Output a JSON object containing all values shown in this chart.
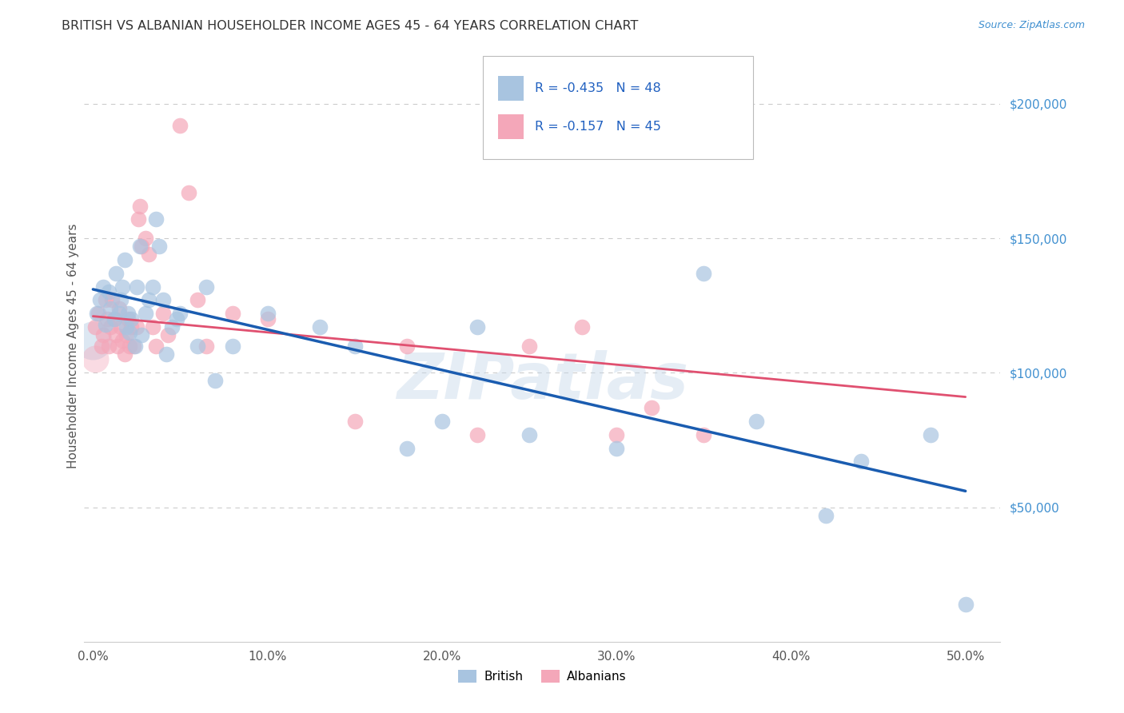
{
  "title": "BRITISH VS ALBANIAN HOUSEHOLDER INCOME AGES 45 - 64 YEARS CORRELATION CHART",
  "source": "Source: ZipAtlas.com",
  "ylabel": "Householder Income Ages 45 - 64 years",
  "xlabel_ticks": [
    "0.0%",
    "10.0%",
    "20.0%",
    "30.0%",
    "40.0%",
    "50.0%"
  ],
  "xlabel_vals": [
    0.0,
    0.1,
    0.2,
    0.3,
    0.4,
    0.5
  ],
  "ylabel_ticks": [
    "$50,000",
    "$100,000",
    "$150,000",
    "$200,000"
  ],
  "ylabel_vals": [
    50000,
    100000,
    150000,
    200000
  ],
  "ylim": [
    0,
    220000
  ],
  "xlim": [
    -0.005,
    0.52
  ],
  "british_R": -0.435,
  "british_N": 48,
  "albanian_R": -0.157,
  "albanian_N": 45,
  "british_color": "#a8c4e0",
  "albanian_color": "#f4a7b9",
  "british_line_color": "#1a5cb0",
  "albanian_line_color": "#e05070",
  "watermark": "ZIPatlas",
  "british_line_x0": 0.0,
  "british_line_y0": 131000,
  "british_line_x1": 0.5,
  "british_line_y1": 56000,
  "albanian_line_x0": 0.0,
  "albanian_line_y0": 121000,
  "albanian_line_x1": 0.5,
  "albanian_line_y1": 91000,
  "british_x": [
    0.002,
    0.004,
    0.006,
    0.007,
    0.009,
    0.01,
    0.012,
    0.013,
    0.015,
    0.016,
    0.017,
    0.018,
    0.019,
    0.02,
    0.021,
    0.022,
    0.024,
    0.025,
    0.027,
    0.028,
    0.03,
    0.032,
    0.034,
    0.036,
    0.038,
    0.04,
    0.042,
    0.045,
    0.048,
    0.05,
    0.06,
    0.065,
    0.07,
    0.08,
    0.1,
    0.13,
    0.15,
    0.18,
    0.2,
    0.22,
    0.25,
    0.3,
    0.35,
    0.38,
    0.42,
    0.44,
    0.48,
    0.5
  ],
  "british_y": [
    122000,
    127000,
    132000,
    118000,
    130000,
    124000,
    120000,
    137000,
    122000,
    127000,
    132000,
    142000,
    117000,
    122000,
    115000,
    120000,
    110000,
    132000,
    147000,
    114000,
    122000,
    127000,
    132000,
    157000,
    147000,
    127000,
    107000,
    117000,
    120000,
    122000,
    110000,
    132000,
    97000,
    110000,
    122000,
    117000,
    110000,
    72000,
    82000,
    117000,
    77000,
    72000,
    137000,
    82000,
    47000,
    67000,
    77000,
    14000
  ],
  "albanian_x": [
    0.001,
    0.003,
    0.005,
    0.006,
    0.007,
    0.008,
    0.009,
    0.01,
    0.011,
    0.012,
    0.013,
    0.014,
    0.015,
    0.016,
    0.017,
    0.018,
    0.019,
    0.02,
    0.021,
    0.022,
    0.023,
    0.025,
    0.026,
    0.027,
    0.028,
    0.03,
    0.032,
    0.034,
    0.036,
    0.04,
    0.043,
    0.05,
    0.055,
    0.06,
    0.065,
    0.08,
    0.1,
    0.15,
    0.18,
    0.22,
    0.25,
    0.28,
    0.3,
    0.32,
    0.35
  ],
  "albanian_y": [
    117000,
    122000,
    110000,
    114000,
    127000,
    120000,
    110000,
    117000,
    127000,
    120000,
    114000,
    110000,
    124000,
    117000,
    112000,
    107000,
    114000,
    120000,
    110000,
    117000,
    110000,
    117000,
    157000,
    162000,
    147000,
    150000,
    144000,
    117000,
    110000,
    122000,
    114000,
    192000,
    167000,
    127000,
    110000,
    122000,
    120000,
    82000,
    110000,
    77000,
    110000,
    117000,
    77000,
    87000,
    77000
  ]
}
